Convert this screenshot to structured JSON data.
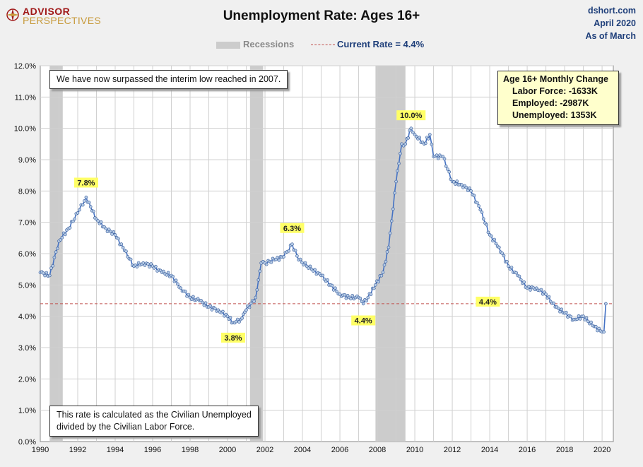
{
  "branding": {
    "logo_top": "ADVISOR",
    "logo_bottom": "PERSPECTIVES"
  },
  "header": {
    "title": "Unemployment Rate: Ages 16+",
    "source": "dshort.com",
    "date_line1": "April 2020",
    "date_line2": "As of March"
  },
  "legend": {
    "recessions": "Recessions",
    "current_rate": "Current Rate = 4.4%"
  },
  "notes": {
    "top": "We have now surpassed the interim low reached in 2007.",
    "bottom_line1": "This rate is calculated as the Civilian Unemployed",
    "bottom_line2": "divided by the Civilian Labor Force."
  },
  "infobox": {
    "title": "Age 16+ Monthly Change",
    "labor_force": "Labor Force:  -1633K",
    "employed": "Employed:  -2987K",
    "unemployed": "Unemployed:  1353K"
  },
  "colors": {
    "line": "#4472c4",
    "marker_fill": "#b7cce6",
    "reference": "#c0504d",
    "recession": "#cccccc",
    "label_bg": "#ffff66"
  },
  "chart_data": {
    "type": "line",
    "title": "Unemployment Rate: Ages 16+",
    "xlabel": "",
    "ylabel": "",
    "xlim": [
      1990,
      2020.6
    ],
    "ylim": [
      0,
      12
    ],
    "x_ticks": [
      "1990",
      "1992",
      "1994",
      "1996",
      "1998",
      "2000",
      "2002",
      "2004",
      "2006",
      "2008",
      "2010",
      "2012",
      "2014",
      "2016",
      "2018",
      "2020"
    ],
    "y_ticks": [
      "0.0%",
      "1.0%",
      "2.0%",
      "3.0%",
      "4.0%",
      "5.0%",
      "6.0%",
      "7.0%",
      "8.0%",
      "9.0%",
      "10.0%",
      "11.0%",
      "12.0%"
    ],
    "grid": true,
    "legend_position": "top-center",
    "recessions": [
      [
        1990.5,
        1991.2
      ],
      [
        2001.2,
        2001.9
      ],
      [
        2007.9,
        2009.5
      ]
    ],
    "reference_line": {
      "value": 4.4,
      "label": "4.4%",
      "label_x": 2013.9
    },
    "annotations": [
      {
        "x": 1992.45,
        "y": 7.8,
        "label": "7.8%"
      },
      {
        "x": 2000.3,
        "y": 3.8,
        "label": "3.8%"
      },
      {
        "x": 2003.45,
        "y": 6.3,
        "label": "6.3%"
      },
      {
        "x": 2007.25,
        "y": 4.4,
        "label": "4.4%"
      },
      {
        "x": 2009.8,
        "y": 10.0,
        "label": "10.0%"
      }
    ],
    "series": [
      {
        "name": "",
        "x": [
          1990.0,
          1990.5,
          1991.0,
          1991.5,
          1992.0,
          1992.45,
          1993.0,
          1993.5,
          1994.0,
          1994.5,
          1995.0,
          1995.5,
          1996.0,
          1996.5,
          1997.0,
          1997.5,
          1998.0,
          1998.5,
          1999.0,
          1999.5,
          2000.0,
          2000.3,
          2000.7,
          2001.0,
          2001.5,
          2001.8,
          2002.0,
          2002.5,
          2003.0,
          2003.45,
          2003.8,
          2004.5,
          2005.0,
          2005.5,
          2006.0,
          2006.5,
          2007.0,
          2007.25,
          2007.5,
          2007.9,
          2008.3,
          2008.6,
          2009.0,
          2009.3,
          2009.5,
          2009.8,
          2010.0,
          2010.5,
          2010.8,
          2011.0,
          2011.5,
          2012.0,
          2012.5,
          2013.0,
          2013.5,
          2014.0,
          2014.5,
          2015.0,
          2015.5,
          2016.0,
          2016.5,
          2017.0,
          2017.5,
          2018.0,
          2018.5,
          2019.0,
          2019.5,
          2020.0,
          2020.1,
          2020.2
        ],
        "y": [
          5.4,
          5.3,
          6.4,
          6.8,
          7.3,
          7.8,
          7.1,
          6.8,
          6.6,
          6.1,
          5.6,
          5.7,
          5.6,
          5.4,
          5.3,
          4.9,
          4.6,
          4.5,
          4.3,
          4.2,
          4.0,
          3.8,
          3.9,
          4.2,
          4.6,
          5.7,
          5.7,
          5.8,
          5.9,
          6.3,
          5.8,
          5.5,
          5.3,
          5.0,
          4.7,
          4.6,
          4.6,
          4.4,
          4.6,
          5.0,
          5.4,
          6.2,
          8.3,
          9.5,
          9.5,
          10.0,
          9.8,
          9.5,
          9.8,
          9.1,
          9.1,
          8.3,
          8.2,
          8.0,
          7.4,
          6.6,
          6.2,
          5.6,
          5.3,
          4.9,
          4.9,
          4.7,
          4.3,
          4.1,
          3.9,
          4.0,
          3.7,
          3.5,
          3.5,
          4.4
        ]
      }
    ]
  }
}
